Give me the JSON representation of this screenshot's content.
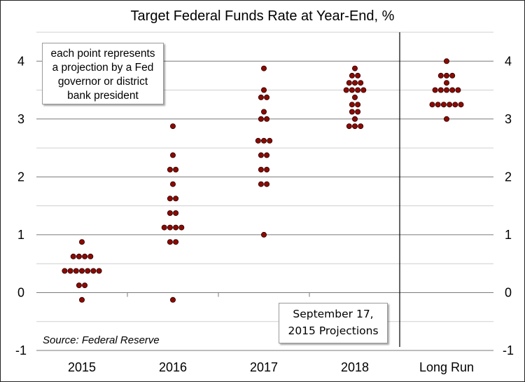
{
  "chart_data": {
    "type": "scatter",
    "title": "Target Federal Funds Rate at Year-End, %",
    "categories": [
      "2015",
      "2016",
      "2017",
      "2018",
      "Long Run"
    ],
    "ylim": [
      -1,
      4.5
    ],
    "yticks": [
      "-1",
      "0",
      "1",
      "2",
      "3",
      "4"
    ],
    "grid": true,
    "dot_color": "#8b0a00",
    "dot_stroke": "#2a0000",
    "divider_after_category": "2018",
    "dots": [
      {
        "category": "2015",
        "value": 0.875,
        "count": 1
      },
      {
        "category": "2015",
        "value": 0.625,
        "count": 4
      },
      {
        "category": "2015",
        "value": 0.375,
        "count": 7
      },
      {
        "category": "2015",
        "value": 0.125,
        "count": 2
      },
      {
        "category": "2015",
        "value": -0.125,
        "count": 1
      },
      {
        "category": "2016",
        "value": 2.875,
        "count": 1
      },
      {
        "category": "2016",
        "value": 2.375,
        "count": 1
      },
      {
        "category": "2016",
        "value": 2.125,
        "count": 2
      },
      {
        "category": "2016",
        "value": 1.875,
        "count": 1
      },
      {
        "category": "2016",
        "value": 1.625,
        "count": 2
      },
      {
        "category": "2016",
        "value": 1.375,
        "count": 2
      },
      {
        "category": "2016",
        "value": 1.125,
        "count": 4
      },
      {
        "category": "2016",
        "value": 0.875,
        "count": 2
      },
      {
        "category": "2016",
        "value": -0.125,
        "count": 1
      },
      {
        "category": "2017",
        "value": 3.875,
        "count": 1
      },
      {
        "category": "2017",
        "value": 3.5,
        "count": 1
      },
      {
        "category": "2017",
        "value": 3.375,
        "count": 2
      },
      {
        "category": "2017",
        "value": 3.125,
        "count": 1
      },
      {
        "category": "2017",
        "value": 3.0,
        "count": 2
      },
      {
        "category": "2017",
        "value": 2.625,
        "count": 3
      },
      {
        "category": "2017",
        "value": 2.375,
        "count": 2
      },
      {
        "category": "2017",
        "value": 2.125,
        "count": 2
      },
      {
        "category": "2017",
        "value": 1.875,
        "count": 2
      },
      {
        "category": "2017",
        "value": 1.0,
        "count": 1
      },
      {
        "category": "2018",
        "value": 3.875,
        "count": 1
      },
      {
        "category": "2018",
        "value": 3.75,
        "count": 2
      },
      {
        "category": "2018",
        "value": 3.625,
        "count": 3
      },
      {
        "category": "2018",
        "value": 3.5,
        "count": 4
      },
      {
        "category": "2018",
        "value": 3.375,
        "count": 1
      },
      {
        "category": "2018",
        "value": 3.25,
        "count": 2
      },
      {
        "category": "2018",
        "value": 3.125,
        "count": 2
      },
      {
        "category": "2018",
        "value": 3.0,
        "count": 1
      },
      {
        "category": "2018",
        "value": 2.875,
        "count": 3
      },
      {
        "category": "Long Run",
        "value": 4.0,
        "count": 1
      },
      {
        "category": "Long Run",
        "value": 3.75,
        "count": 3
      },
      {
        "category": "Long Run",
        "value": 3.625,
        "count": 1
      },
      {
        "category": "Long Run",
        "value": 3.5,
        "count": 5
      },
      {
        "category": "Long Run",
        "value": 3.25,
        "count": 6
      },
      {
        "category": "Long Run",
        "value": 3.0,
        "count": 1
      }
    ]
  },
  "notes": {
    "points_note_lines": [
      "each point represents",
      "a projection by a Fed",
      "governor or district",
      "bank president"
    ],
    "projection_note_lines": [
      "September 17,",
      "2015 Projections"
    ],
    "source": "Source: Federal Reserve"
  }
}
